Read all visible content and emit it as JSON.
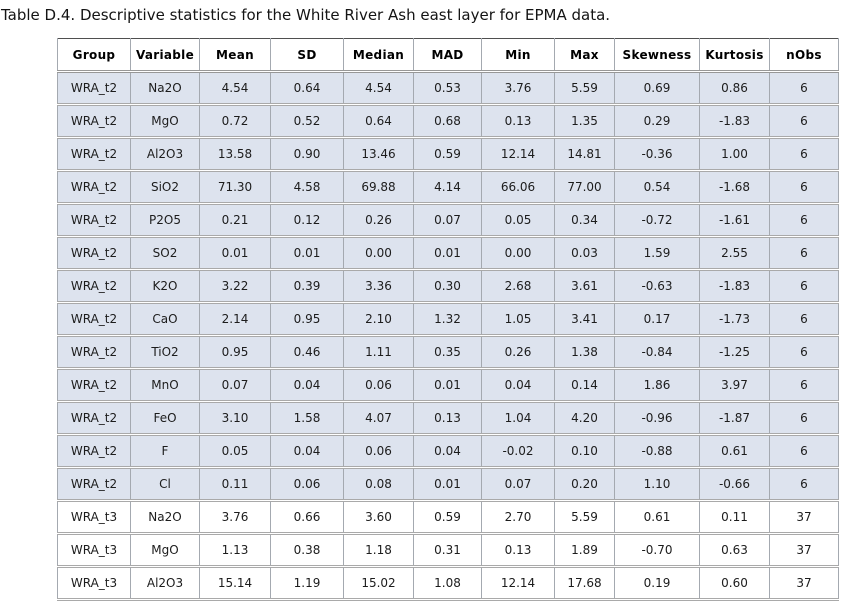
{
  "caption": "Table D.4. Descriptive statistics for the White River Ash east layer for EPMA data.",
  "table": {
    "columns": [
      "Group",
      "Variable",
      "Mean",
      "SD",
      "Median",
      "MAD",
      "Min",
      "Max",
      "Skewness",
      "Kurtosis",
      "nObs"
    ],
    "rows": [
      {
        "shaded": true,
        "cells": [
          "WRA_t2",
          "Na2O",
          "4.54",
          "0.64",
          "4.54",
          "0.53",
          "3.76",
          "5.59",
          "0.69",
          "0.86",
          "6"
        ]
      },
      {
        "shaded": true,
        "cells": [
          "WRA_t2",
          "MgO",
          "0.72",
          "0.52",
          "0.64",
          "0.68",
          "0.13",
          "1.35",
          "0.29",
          "-1.83",
          "6"
        ]
      },
      {
        "shaded": true,
        "cells": [
          "WRA_t2",
          "Al2O3",
          "13.58",
          "0.90",
          "13.46",
          "0.59",
          "12.14",
          "14.81",
          "-0.36",
          "1.00",
          "6"
        ]
      },
      {
        "shaded": true,
        "cells": [
          "WRA_t2",
          "SiO2",
          "71.30",
          "4.58",
          "69.88",
          "4.14",
          "66.06",
          "77.00",
          "0.54",
          "-1.68",
          "6"
        ]
      },
      {
        "shaded": true,
        "cells": [
          "WRA_t2",
          "P2O5",
          "0.21",
          "0.12",
          "0.26",
          "0.07",
          "0.05",
          "0.34",
          "-0.72",
          "-1.61",
          "6"
        ]
      },
      {
        "shaded": true,
        "cells": [
          "WRA_t2",
          "SO2",
          "0.01",
          "0.01",
          "0.00",
          "0.01",
          "0.00",
          "0.03",
          "1.59",
          "2.55",
          "6"
        ]
      },
      {
        "shaded": true,
        "cells": [
          "WRA_t2",
          "K2O",
          "3.22",
          "0.39",
          "3.36",
          "0.30",
          "2.68",
          "3.61",
          "-0.63",
          "-1.83",
          "6"
        ]
      },
      {
        "shaded": true,
        "cells": [
          "WRA_t2",
          "CaO",
          "2.14",
          "0.95",
          "2.10",
          "1.32",
          "1.05",
          "3.41",
          "0.17",
          "-1.73",
          "6"
        ]
      },
      {
        "shaded": true,
        "cells": [
          "WRA_t2",
          "TiO2",
          "0.95",
          "0.46",
          "1.11",
          "0.35",
          "0.26",
          "1.38",
          "-0.84",
          "-1.25",
          "6"
        ]
      },
      {
        "shaded": true,
        "cells": [
          "WRA_t2",
          "MnO",
          "0.07",
          "0.04",
          "0.06",
          "0.01",
          "0.04",
          "0.14",
          "1.86",
          "3.97",
          "6"
        ]
      },
      {
        "shaded": true,
        "cells": [
          "WRA_t2",
          "FeO",
          "3.10",
          "1.58",
          "4.07",
          "0.13",
          "1.04",
          "4.20",
          "-0.96",
          "-1.87",
          "6"
        ]
      },
      {
        "shaded": true,
        "cells": [
          "WRA_t2",
          "F",
          "0.05",
          "0.04",
          "0.06",
          "0.04",
          "-0.02",
          "0.10",
          "-0.88",
          "0.61",
          "6"
        ]
      },
      {
        "shaded": true,
        "cells": [
          "WRA_t2",
          "Cl",
          "0.11",
          "0.06",
          "0.08",
          "0.01",
          "0.07",
          "0.20",
          "1.10",
          "-0.66",
          "6"
        ]
      },
      {
        "shaded": false,
        "cells": [
          "WRA_t3",
          "Na2O",
          "3.76",
          "0.66",
          "3.60",
          "0.59",
          "2.70",
          "5.59",
          "0.61",
          "0.11",
          "37"
        ]
      },
      {
        "shaded": false,
        "cells": [
          "WRA_t3",
          "MgO",
          "1.13",
          "0.38",
          "1.18",
          "0.31",
          "0.13",
          "1.89",
          "-0.70",
          "0.63",
          "37"
        ]
      },
      {
        "shaded": false,
        "cells": [
          "WRA_t3",
          "Al2O3",
          "15.14",
          "1.19",
          "15.02",
          "1.08",
          "12.14",
          "17.68",
          "0.19",
          "0.60",
          "37"
        ]
      }
    ]
  },
  "colors": {
    "shaded_row_bg": "#dde3ee",
    "white_row_bg": "#ffffff",
    "grid_line": "#a4a9b0",
    "outer_border": "#4f4f4f",
    "header_text": "#000000",
    "cell_text": "#1c1c1c"
  }
}
